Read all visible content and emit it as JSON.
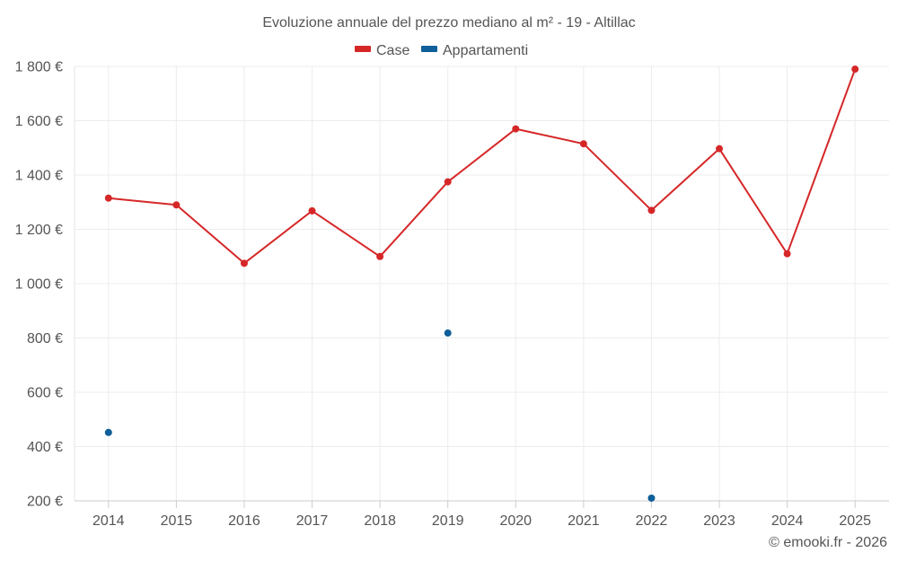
{
  "chart_data": {
    "type": "line",
    "title": "Evoluzione annuale del prezzo mediano al m² - 19 - Altillac",
    "categories": [
      "2014",
      "2015",
      "2016",
      "2017",
      "2018",
      "2019",
      "2020",
      "2021",
      "2022",
      "2023",
      "2024",
      "2025"
    ],
    "ylim": [
      200,
      1800
    ],
    "yticks": [
      200,
      400,
      600,
      800,
      1000,
      1200,
      1400,
      1600,
      1800
    ],
    "ytick_labels": [
      "200 €",
      "400 €",
      "600 €",
      "800 €",
      "1 000 €",
      "1 200 €",
      "1 400 €",
      "1 600 €",
      "1 800 €"
    ],
    "grid": true,
    "legend_position": "top-center",
    "series": [
      {
        "name": "Case",
        "color": "#d62728",
        "values": [
          1315,
          1290,
          1075,
          1268,
          1100,
          1375,
          1570,
          1515,
          1270,
          1497,
          1110,
          1790
        ]
      },
      {
        "name": "Appartamenti",
        "color": "#0e5f9a",
        "values": [
          452,
          null,
          null,
          null,
          null,
          818,
          null,
          null,
          210,
          null,
          null,
          null
        ]
      }
    ]
  },
  "credit": "© emooki.fr - 2026"
}
